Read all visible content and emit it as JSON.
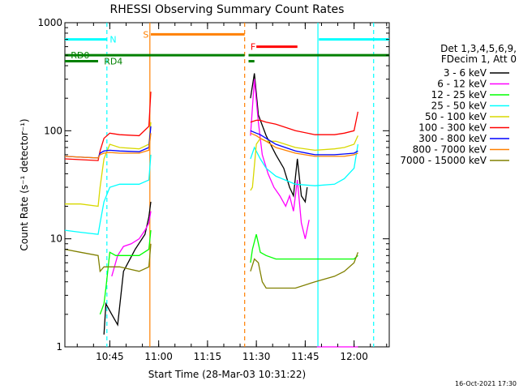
{
  "chart_data": {
    "type": "line",
    "title": "RHESSI Observing Summary Count Rates",
    "xlabel": "Start Time (28-Mar-03 10:31:22)",
    "ylabel": "Count Rate (s⁻¹ detector⁻¹)",
    "xlim": [
      10.52,
      12.18
    ],
    "ylim": [
      1,
      1000
    ],
    "yscale": "log",
    "xticks": [
      {
        "value": 10.75,
        "label": "10:45"
      },
      {
        "value": 11.0,
        "label": "11:00"
      },
      {
        "value": 11.25,
        "label": "11:15"
      },
      {
        "value": 11.5,
        "label": "11:30"
      },
      {
        "value": 11.75,
        "label": "11:45"
      },
      {
        "value": 12.0,
        "label": "12:00"
      }
    ],
    "yticks": [
      {
        "value": 1,
        "label": "1"
      },
      {
        "value": 10,
        "label": "10"
      },
      {
        "value": 100,
        "label": "100"
      },
      {
        "value": 1000,
        "label": "1000"
      }
    ],
    "legend_header": [
      "Det 1,3,4,5,6,9,",
      "FDecim 1, Att 0"
    ],
    "legend_position": "right",
    "series": [
      {
        "name": "3 - 6 keV",
        "color": "#000000",
        "x": [
          10.52,
          10.7,
          10.72,
          10.73,
          10.76,
          10.79,
          10.82,
          10.88,
          10.93,
          10.95,
          10.96,
          11.455,
          11.47,
          11.49,
          11.51,
          11.55,
          11.6,
          11.64,
          11.67,
          11.69,
          11.71,
          11.73,
          11.75,
          11.76,
          11.78
        ],
        "y": [
          null,
          null,
          1.3,
          2.5,
          2.0,
          1.6,
          5.0,
          8.0,
          11.0,
          16.0,
          22.0,
          null,
          200,
          340,
          140,
          90,
          60,
          45,
          30,
          25,
          55,
          25,
          22,
          30,
          null
        ]
      },
      {
        "name": "6 - 12 keV",
        "color": "#ff00ff",
        "x": [
          10.52,
          10.76,
          10.79,
          10.82,
          10.86,
          10.9,
          10.93,
          10.95,
          10.96,
          11.455,
          11.47,
          11.49,
          11.51,
          11.53,
          11.56,
          11.59,
          11.62,
          11.65,
          11.67,
          11.69,
          11.71,
          11.73,
          11.75,
          11.77,
          11.78,
          11.81,
          11.81,
          11.85,
          11.9,
          11.95,
          12.0,
          12.02
        ],
        "y": [
          null,
          4.5,
          7.0,
          8.5,
          9.0,
          10.0,
          12.0,
          14.0,
          18.0,
          null,
          90,
          300,
          120,
          60,
          40,
          30,
          25,
          20,
          25,
          18,
          35,
          14,
          10,
          15,
          null,
          null,
          1.0,
          1.0,
          1.0,
          1.0,
          1.0,
          1.0
        ]
      },
      {
        "name": "12 - 25 keV",
        "color": "#00ff00",
        "x": [
          10.52,
          10.69,
          10.7,
          10.72,
          10.73,
          10.75,
          10.78,
          10.8,
          10.9,
          10.95,
          10.96,
          11.455,
          11.47,
          11.48,
          11.5,
          11.52,
          11.55,
          11.6,
          11.7,
          11.78,
          11.8,
          11.85,
          11.9,
          11.95,
          12.0,
          12.02
        ],
        "y": [
          null,
          null,
          2.0,
          2.5,
          3.5,
          7.5,
          7.0,
          7.0,
          7.0,
          8.0,
          12.0,
          null,
          6.0,
          8.0,
          11.0,
          7.5,
          7.0,
          6.5,
          6.5,
          6.5,
          6.5,
          6.5,
          6.5,
          6.5,
          6.5,
          7.0
        ]
      },
      {
        "name": "25 - 50 keV",
        "color": "#00ffff",
        "x": [
          10.52,
          10.6,
          10.69,
          10.7,
          10.72,
          10.75,
          10.8,
          10.9,
          10.95,
          10.96,
          11.455,
          11.47,
          11.49,
          11.52,
          11.55,
          11.6,
          11.7,
          11.8,
          11.9,
          11.95,
          12.0,
          12.02
        ],
        "y": [
          12.0,
          11.5,
          11.0,
          14.0,
          22.0,
          30.0,
          32.0,
          32.0,
          35.0,
          60.0,
          null,
          55.0,
          70.0,
          55.0,
          45.0,
          38.0,
          32.0,
          31.0,
          32.0,
          36.0,
          45.0,
          75.0
        ]
      },
      {
        "name": "50 - 100 keV",
        "color": "#d8d800",
        "x": [
          10.52,
          10.6,
          10.69,
          10.7,
          10.72,
          10.75,
          10.8,
          10.9,
          10.95,
          10.96,
          11.455,
          11.47,
          11.48,
          11.5,
          11.52,
          11.55,
          11.6,
          11.7,
          11.8,
          11.9,
          11.95,
          12.0,
          12.02
        ],
        "y": [
          21.0,
          21.0,
          20.0,
          30.0,
          55.0,
          75.0,
          70.0,
          68.0,
          75.0,
          120.0,
          null,
          28.0,
          30.0,
          75.0,
          85.0,
          80.0,
          80.0,
          70.0,
          66.0,
          68.0,
          70.0,
          75.0,
          90.0
        ]
      },
      {
        "name": "100 - 300 keV",
        "color": "#ff0000",
        "x": [
          10.52,
          10.6,
          10.69,
          10.7,
          10.72,
          10.75,
          10.8,
          10.9,
          10.95,
          10.96,
          11.455,
          11.47,
          11.5,
          11.52,
          11.55,
          11.6,
          11.7,
          11.8,
          11.9,
          11.95,
          12.0,
          12.02
        ],
        "y": [
          55.0,
          54.0,
          53.0,
          65.0,
          85.0,
          95.0,
          92.0,
          90.0,
          110.0,
          230.0,
          null,
          120.0,
          125.0,
          125.0,
          120.0,
          115.0,
          100.0,
          92.0,
          92.0,
          95.0,
          100.0,
          150.0
        ]
      },
      {
        "name": "300 - 800 keV",
        "color": "#0000ff",
        "x": [
          10.52,
          10.6,
          10.69,
          10.7,
          10.72,
          10.75,
          10.8,
          10.9,
          10.95,
          10.96,
          11.455,
          11.47,
          11.5,
          11.52,
          11.55,
          11.6,
          11.7,
          11.8,
          11.9,
          11.95,
          12.0,
          12.02
        ],
        "y": [
          58.0,
          57.0,
          56.0,
          62.0,
          65.0,
          66.0,
          65.0,
          64.0,
          70.0,
          110.0,
          null,
          100.0,
          95.0,
          92.0,
          85.0,
          75.0,
          65.0,
          60.0,
          60.0,
          61.0,
          62.0,
          65.0
        ]
      },
      {
        "name": "800 - 7000 keV",
        "color": "#ff8000",
        "x": [
          10.52,
          10.6,
          10.69,
          10.7,
          10.72,
          10.75,
          10.8,
          10.9,
          10.95,
          10.96,
          11.455,
          11.47,
          11.5,
          11.52,
          11.55,
          11.6,
          11.7,
          11.8,
          11.9,
          11.95,
          12.0,
          12.02
        ],
        "y": [
          58.0,
          57.0,
          56.0,
          60.0,
          62.0,
          63.0,
          62.0,
          62.0,
          66.0,
          95.0,
          null,
          95.0,
          90.0,
          85.0,
          80.0,
          70.0,
          62.0,
          58.0,
          58.0,
          58.0,
          60.0,
          62.0
        ]
      },
      {
        "name": "7000 - 15000 keV",
        "color": "#808000",
        "x": [
          10.52,
          10.6,
          10.69,
          10.7,
          10.72,
          10.75,
          10.8,
          10.9,
          10.95,
          10.96,
          11.455,
          11.47,
          11.49,
          11.51,
          11.53,
          11.55,
          11.6,
          11.7,
          11.8,
          11.9,
          11.95,
          12.0,
          12.02
        ],
        "y": [
          8.0,
          7.5,
          7.0,
          5.0,
          5.5,
          5.5,
          5.5,
          5.0,
          5.5,
          9.0,
          null,
          5.0,
          6.5,
          6.0,
          4.0,
          3.5,
          3.5,
          3.5,
          4.0,
          4.5,
          5.0,
          6.0,
          7.5
        ]
      }
    ],
    "flag_bars": [
      {
        "label": "N",
        "color": "#00ffff",
        "segments": [
          [
            10.52,
            10.735
          ],
          [
            11.82,
            12.18
          ]
        ],
        "level": 700,
        "label_x": 10.75
      },
      {
        "label": "S",
        "color": "#ff8000",
        "segments": [
          [
            10.96,
            11.44
          ]
        ],
        "level": 780,
        "label_x": 10.92
      },
      {
        "label": "F",
        "color": "#ff0000",
        "segments": [
          [
            11.5,
            11.71
          ]
        ],
        "level": 600,
        "label_x": 11.47
      },
      {
        "label": "RD0",
        "color": "#008000",
        "segments": [
          [
            10.52,
            11.44
          ],
          [
            11.46,
            12.18
          ]
        ],
        "level": 500,
        "label_x": 10.55
      },
      {
        "label": "RD4",
        "color": "#008000",
        "segments": [
          [
            10.52,
            10.69
          ],
          [
            11.46,
            11.49
          ]
        ],
        "level": 440,
        "label_x": 10.72
      }
    ],
    "vertical_markers": [
      {
        "x": 10.735,
        "color": "#00ffff",
        "style": "dashed"
      },
      {
        "x": 10.955,
        "color": "#ff8000",
        "style": "solid"
      },
      {
        "x": 11.44,
        "color": "#ff8000",
        "style": "dashed"
      },
      {
        "x": 11.815,
        "color": "#00ffff",
        "style": "solid"
      },
      {
        "x": 12.1,
        "color": "#00ffff",
        "style": "dashed"
      }
    ],
    "timestamp": "16-Oct-2021 17:30"
  }
}
